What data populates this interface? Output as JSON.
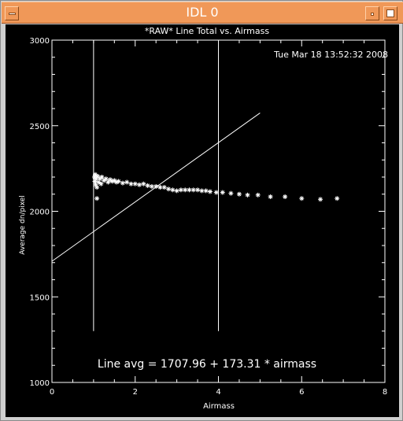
{
  "window": {
    "title": "IDL 0"
  },
  "plot": {
    "title": "*RAW* Line Total vs. Airmass",
    "timestamp": "Tue Mar 18 13:52:32 2008",
    "fit_label": "Line avg = 1707.96 + 173.31 * airmass"
  },
  "chart_data": {
    "type": "scatter",
    "title": "*RAW* Line Total vs. Airmass",
    "xlabel": "Airmass",
    "ylabel": "Average dn/pixel",
    "xlim": [
      0,
      8
    ],
    "ylim": [
      1000,
      3000
    ],
    "x_ticks": [
      0,
      2,
      4,
      6,
      8
    ],
    "y_ticks": [
      1000,
      1500,
      2000,
      2500,
      3000
    ],
    "minor_ticks": true,
    "grid": false,
    "legend": "none",
    "marker": "*",
    "color": "#ffffff",
    "series": [
      {
        "points": [
          [
            1.02,
            2200
          ],
          [
            1.03,
            2175
          ],
          [
            1.04,
            2215
          ],
          [
            1.05,
            2155
          ],
          [
            1.06,
            2190
          ],
          [
            1.08,
            2140
          ],
          [
            1.08,
            2075
          ],
          [
            1.1,
            2205
          ],
          [
            1.12,
            2170
          ],
          [
            1.15,
            2190
          ],
          [
            1.18,
            2160
          ],
          [
            1.2,
            2200
          ],
          [
            1.25,
            2180
          ],
          [
            1.3,
            2190
          ],
          [
            1.35,
            2170
          ],
          [
            1.4,
            2185
          ],
          [
            1.45,
            2175
          ],
          [
            1.5,
            2180
          ],
          [
            1.55,
            2170
          ],
          [
            1.6,
            2175
          ],
          [
            1.7,
            2165
          ],
          [
            1.8,
            2170
          ],
          [
            1.9,
            2160
          ],
          [
            2.0,
            2160
          ],
          [
            2.1,
            2155
          ],
          [
            2.2,
            2160
          ],
          [
            2.3,
            2150
          ],
          [
            2.4,
            2145
          ],
          [
            2.5,
            2145
          ],
          [
            2.6,
            2140
          ],
          [
            2.7,
            2140
          ],
          [
            2.8,
            2130
          ],
          [
            2.9,
            2125
          ],
          [
            3.0,
            2120
          ],
          [
            3.1,
            2125
          ],
          [
            3.2,
            2125
          ],
          [
            3.3,
            2125
          ],
          [
            3.4,
            2125
          ],
          [
            3.5,
            2125
          ],
          [
            3.6,
            2120
          ],
          [
            3.7,
            2120
          ],
          [
            3.8,
            2115
          ],
          [
            3.95,
            2110
          ],
          [
            4.1,
            2110
          ],
          [
            4.3,
            2105
          ],
          [
            4.5,
            2100
          ],
          [
            4.7,
            2095
          ],
          [
            4.95,
            2095
          ],
          [
            5.25,
            2085
          ],
          [
            5.6,
            2085
          ],
          [
            6.0,
            2075
          ],
          [
            6.45,
            2070
          ],
          [
            6.85,
            2075
          ]
        ]
      }
    ],
    "fit_line": {
      "intercept": 1707.96,
      "slope": 173.31,
      "x_range": [
        0,
        5
      ]
    },
    "vertical_lines": [
      1,
      4
    ],
    "vertical_line_ylim": [
      1300,
      3000
    ]
  }
}
